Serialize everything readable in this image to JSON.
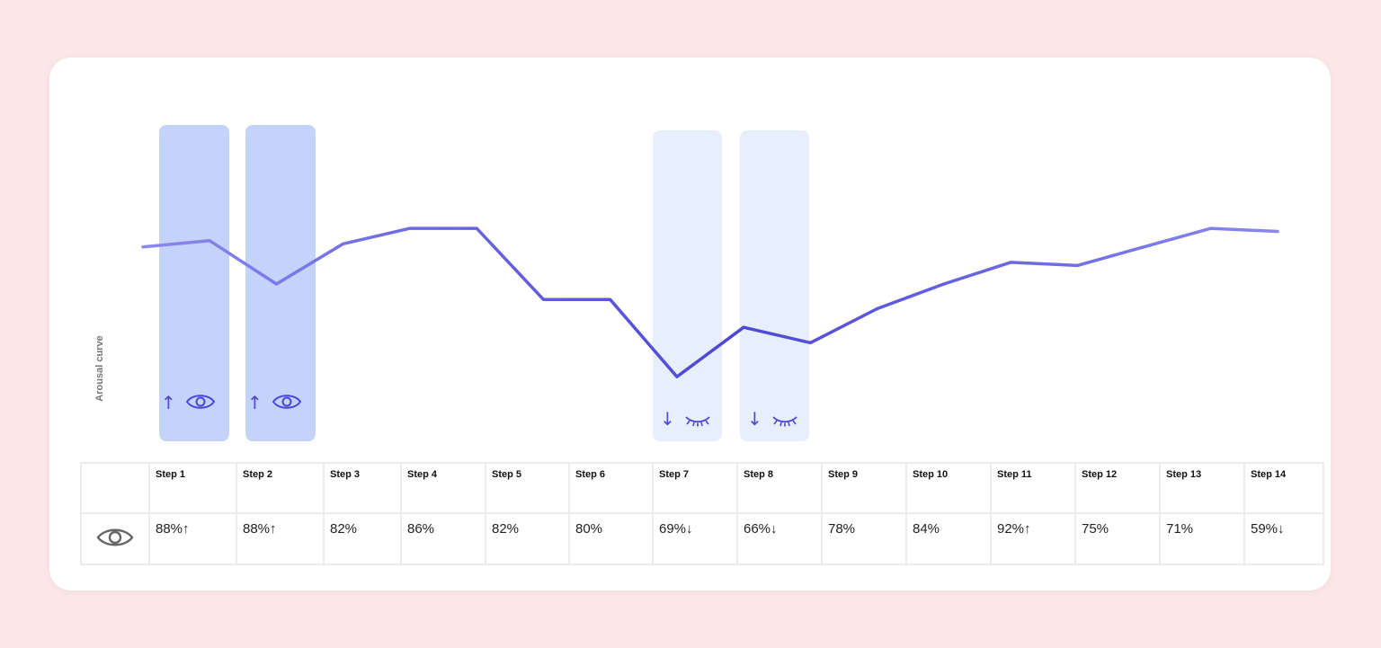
{
  "chart_data": {
    "type": "line",
    "ylabel": "Arousal curve",
    "series": [
      {
        "values": [
          6.2,
          6.4,
          5.0,
          6.3,
          6.8,
          6.8,
          4.5,
          4.5,
          2.0,
          3.6,
          3.1,
          4.2,
          5.0,
          5.7,
          5.6,
          6.2,
          6.8,
          6.7
        ]
      }
    ],
    "ylim": [
      0,
      10
    ]
  },
  "highlights": [
    {
      "name": "step-1-highlight",
      "direction": "up",
      "icon": "eye-open-icon",
      "arrow": "↑"
    },
    {
      "name": "step-2-highlight",
      "direction": "up",
      "icon": "eye-open-icon",
      "arrow": "↑"
    },
    {
      "name": "step-7-highlight",
      "direction": "down",
      "icon": "eye-closed-icon",
      "arrow": "↓"
    },
    {
      "name": "step-8-highlight",
      "direction": "down",
      "icon": "eye-closed-icon",
      "arrow": "↓"
    }
  ],
  "table": {
    "row_icon": "eye-open-icon",
    "steps": [
      "Step 1",
      "Step 2",
      "Step 3",
      "Step 4",
      "Step 5",
      "Step 6",
      "Step 7",
      "Step 8",
      "Step 9",
      "Step 10",
      "Step 11",
      "Step 12",
      "Step 13",
      "Step 14"
    ],
    "values": [
      {
        "text": "88%↑",
        "status": "up"
      },
      {
        "text": "88%↑",
        "status": "up"
      },
      {
        "text": "82%",
        "status": "normal"
      },
      {
        "text": "86%",
        "status": "normal"
      },
      {
        "text": "82%",
        "status": "normal"
      },
      {
        "text": "80%",
        "status": "normal"
      },
      {
        "text": "69%↓",
        "status": "down"
      },
      {
        "text": "66%↓",
        "status": "down"
      },
      {
        "text": "78%",
        "status": "normal"
      },
      {
        "text": "84%",
        "status": "normal"
      },
      {
        "text": "92%↑",
        "status": "up"
      },
      {
        "text": "75%",
        "status": "normal"
      },
      {
        "text": "71%",
        "status": "normal"
      },
      {
        "text": "59%↓",
        "status": "down"
      }
    ]
  },
  "colors": {
    "line_start": "#8a88ee",
    "line_mid": "#4b47d6",
    "line_end": "#8a88ee",
    "band_strong": "#c3d3f9",
    "band_light": "#e8effc",
    "up_text": "#9b9b9b",
    "down_text": "#ec4c51",
    "page_bg": "#fbe6e8"
  }
}
